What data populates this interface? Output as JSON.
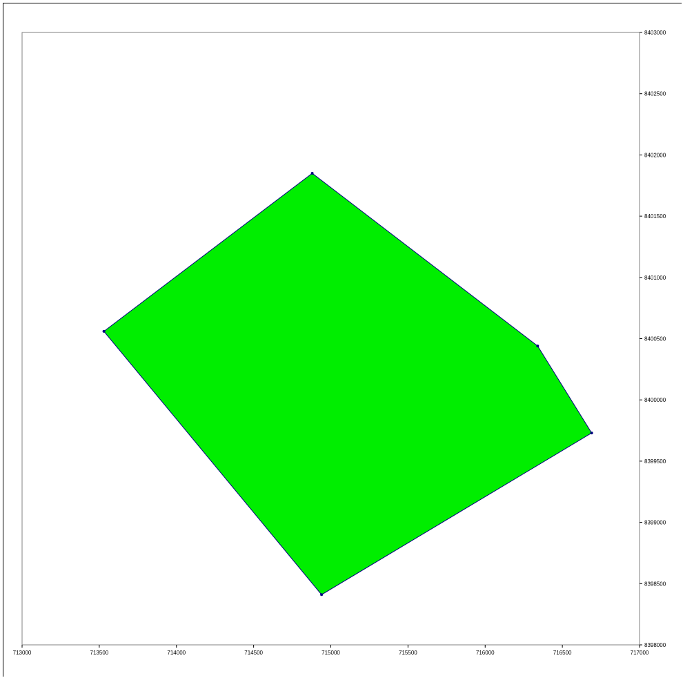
{
  "chart_data": {
    "type": "polygon-map",
    "x_ticks": [
      713000,
      713500,
      714000,
      714500,
      715000,
      715500,
      716000,
      716500,
      717000
    ],
    "x_tick_labels": [
      "713000",
      "713500",
      "714000",
      "714500",
      "715000",
      "715500",
      "716000",
      "716500",
      "717000"
    ],
    "y_ticks": [
      8398000,
      8398500,
      8399000,
      8399500,
      8400000,
      8400500,
      8401000,
      8401500,
      8402000,
      8402500,
      8403000
    ],
    "y_tick_labels": [
      "8398000",
      "8398500",
      "8399000",
      "8399500",
      "8400000",
      "8400500",
      "8401000",
      "8401500",
      "8402000",
      "8402500",
      "8403000"
    ],
    "xlim": [
      713000,
      717000
    ],
    "ylim": [
      8398000,
      8403000
    ],
    "y_axis_side": "right",
    "grid": false,
    "polygon": {
      "fill": "#00ee00",
      "stroke": "#000080",
      "vertices": [
        [
          713530,
          8400560
        ],
        [
          714880,
          8401850
        ],
        [
          716340,
          8400440
        ],
        [
          716690,
          8399730
        ],
        [
          714940,
          8398410
        ]
      ]
    }
  }
}
